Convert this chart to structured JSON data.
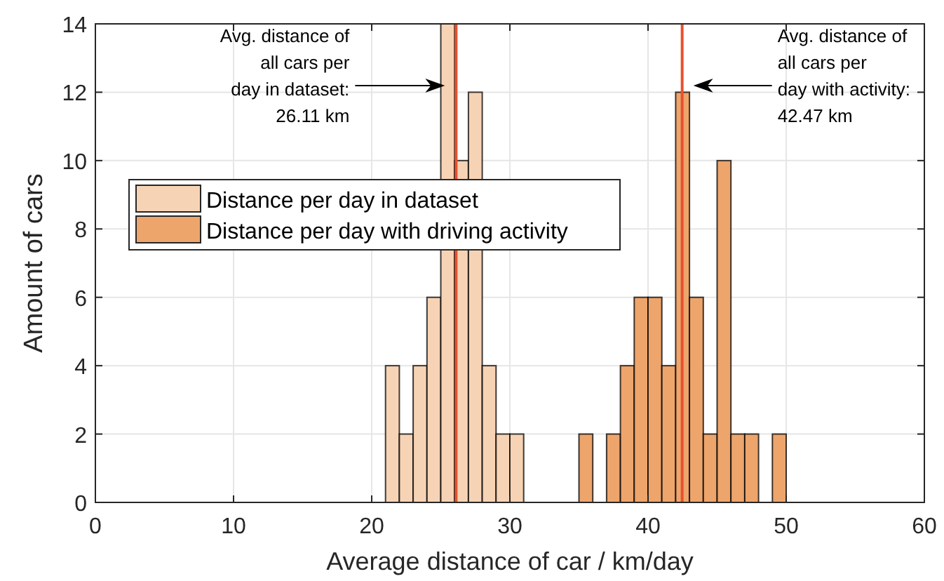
{
  "chart_data": {
    "type": "histogram",
    "xlabel": "Average distance of car / km/day",
    "ylabel": "Amount of cars",
    "bins": [
      21,
      22,
      23,
      24,
      25,
      26,
      27,
      28,
      29,
      30,
      31,
      32,
      33,
      34,
      35,
      36,
      37,
      38,
      39,
      40,
      41,
      42,
      43,
      44,
      45,
      46,
      47,
      48,
      49,
      50
    ],
    "series": [
      {
        "name": "Distance per day in dataset",
        "color": "#f7d3b5",
        "values": [
          4,
          2,
          4,
          6,
          14,
          10,
          12,
          4,
          2,
          2,
          0,
          0,
          0,
          0,
          0,
          0,
          0,
          0,
          0,
          0,
          0,
          0,
          0,
          0,
          0,
          0,
          0,
          0,
          0
        ]
      },
      {
        "name": "Distance per day with driving activity",
        "color": "#eda56c",
        "values": [
          0,
          0,
          0,
          0,
          0,
          0,
          0,
          0,
          0,
          0,
          0,
          0,
          0,
          0,
          2,
          0,
          2,
          4,
          6,
          6,
          4,
          12,
          6,
          2,
          10,
          2,
          2,
          0,
          2
        ]
      }
    ],
    "xlim": [
      0,
      60
    ],
    "xticks": [
      0,
      10,
      20,
      30,
      40,
      50,
      60
    ],
    "ylim": [
      0,
      14
    ],
    "yticks": [
      0,
      2,
      4,
      6,
      8,
      10,
      12,
      14
    ],
    "grid": true,
    "legend": "left",
    "ref_lines": [
      {
        "axis": "x",
        "value": 26.11,
        "color": "#e8502d"
      },
      {
        "axis": "x",
        "value": 42.47,
        "color": "#e8502d"
      }
    ],
    "annotations": [
      "Avg. distance of\nall cars per\nday in dataset:\n26.11 km",
      "Avg. distance of\nall cars per\nday with activity:\n42.47 km"
    ]
  }
}
